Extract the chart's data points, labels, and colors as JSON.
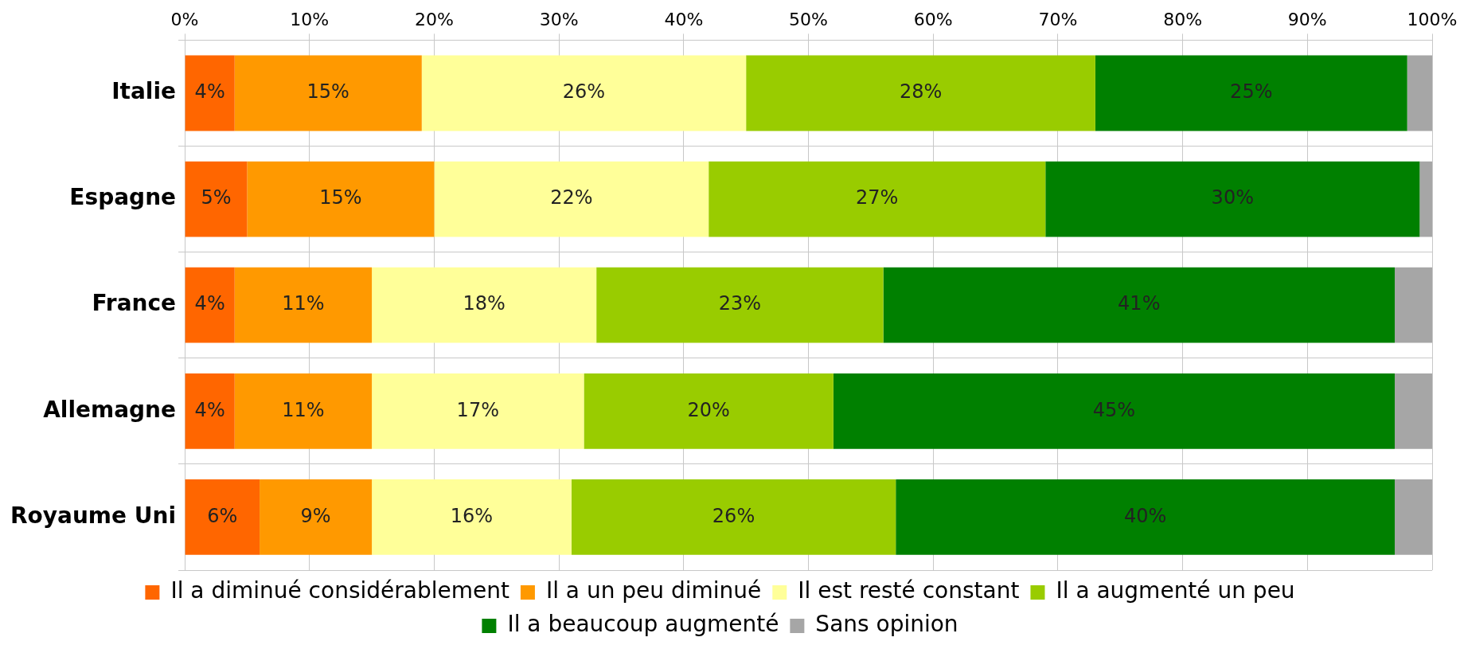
{
  "chart_data": {
    "type": "bar",
    "orientation": "horizontal",
    "stacked": true,
    "categories": [
      "Italie",
      "Espagne",
      "France",
      "Allemagne",
      "Royaume Uni"
    ],
    "series": [
      {
        "name": "Il a diminué considérablement",
        "color": "#ff6600",
        "values": [
          4,
          5,
          4,
          4,
          6
        ],
        "value_labels": [
          "4%",
          "5%",
          "4%",
          "4%",
          "6%"
        ]
      },
      {
        "name": "Il a un peu diminué",
        "color": "#ff9900",
        "values": [
          15,
          15,
          11,
          11,
          9
        ],
        "value_labels": [
          "15%",
          "15%",
          "11%",
          "11%",
          "9%"
        ]
      },
      {
        "name": "Il est resté constant",
        "color": "#ffff99",
        "values": [
          26,
          22,
          18,
          17,
          16
        ],
        "value_labels": [
          "26%",
          "22%",
          "18%",
          "17%",
          "16%"
        ]
      },
      {
        "name": "Il a augmenté un peu",
        "color": "#99cc00",
        "values": [
          28,
          27,
          23,
          20,
          26
        ],
        "value_labels": [
          "28%",
          "27%",
          "23%",
          "20%",
          "26%"
        ]
      },
      {
        "name": "Il a beaucoup augmenté",
        "color": "#008000",
        "values": [
          25,
          30,
          41,
          45,
          40
        ],
        "value_labels": [
          "25%",
          "30%",
          "41%",
          "45%",
          "40%"
        ]
      },
      {
        "name": "Sans opinion",
        "color": "#a6a6a6",
        "values": [
          2,
          1,
          3,
          3,
          3
        ],
        "value_labels": [
          null,
          null,
          null,
          null,
          null
        ]
      }
    ],
    "xlim": [
      0,
      100
    ],
    "xticks": [
      {
        "value": 0,
        "label": "0%"
      },
      {
        "value": 10,
        "label": "10%"
      },
      {
        "value": 20,
        "label": "20%"
      },
      {
        "value": 30,
        "label": "30%"
      },
      {
        "value": 40,
        "label": "40%"
      },
      {
        "value": 50,
        "label": "50%"
      },
      {
        "value": 60,
        "label": "60%"
      },
      {
        "value": 70,
        "label": "70%"
      },
      {
        "value": 80,
        "label": "80%"
      },
      {
        "value": 90,
        "label": "90%"
      },
      {
        "value": 100,
        "label": "100%"
      }
    ],
    "grid": true,
    "legend": "bottom"
  }
}
